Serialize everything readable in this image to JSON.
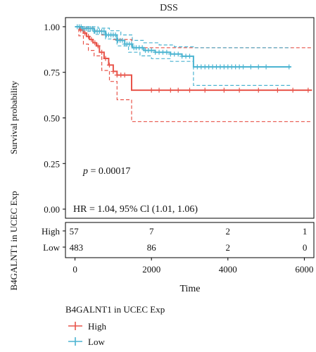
{
  "chart_data": {
    "type": "line",
    "title": "DSS",
    "xlabel": "Time",
    "ylabel": "Survival probability",
    "xlim": [
      -250,
      6250
    ],
    "ylim": [
      -0.05,
      1.05
    ],
    "x_ticks": [
      0,
      2000,
      4000,
      6000
    ],
    "x_tick_labels": [
      "0",
      "2000",
      "4000",
      "6000"
    ],
    "y_ticks": [
      0,
      0.25,
      0.5,
      0.75,
      1
    ],
    "y_tick_labels": [
      "0.00",
      "0.25",
      "0.50",
      "0.75",
      "1.00"
    ],
    "grid": false,
    "annotations": {
      "p_label": "p",
      "p_value": " = 0.00017",
      "hr": "HR = 1.04, 95% Cl (1.01, 1.06)"
    },
    "series": [
      {
        "name": "High",
        "color": "#e8544a",
        "curve": [
          [
            0,
            1.0
          ],
          [
            120,
            0.982
          ],
          [
            220,
            0.965
          ],
          [
            300,
            0.947
          ],
          [
            380,
            0.93
          ],
          [
            470,
            0.912
          ],
          [
            560,
            0.895
          ],
          [
            640,
            0.86
          ],
          [
            760,
            0.826
          ],
          [
            880,
            0.79
          ],
          [
            1000,
            0.755
          ],
          [
            1100,
            0.735
          ],
          [
            1480,
            0.735
          ],
          [
            1480,
            0.652
          ],
          [
            6200,
            0.652
          ]
        ],
        "upper": [
          [
            0,
            1.0
          ],
          [
            150,
            1.0
          ],
          [
            300,
            0.993
          ],
          [
            500,
            0.978
          ],
          [
            700,
            0.955
          ],
          [
            1000,
            0.93
          ],
          [
            1480,
            0.92
          ],
          [
            1480,
            0.885
          ],
          [
            6200,
            0.885
          ]
        ],
        "lower": [
          [
            0,
            1.0
          ],
          [
            100,
            0.95
          ],
          [
            220,
            0.905
          ],
          [
            350,
            0.87
          ],
          [
            500,
            0.84
          ],
          [
            700,
            0.76
          ],
          [
            900,
            0.7
          ],
          [
            1100,
            0.6
          ],
          [
            1480,
            0.6
          ],
          [
            1480,
            0.48
          ],
          [
            6200,
            0.48
          ]
        ],
        "censor_x": [
          150,
          260,
          350,
          430,
          520,
          600,
          700,
          800,
          900,
          1000,
          1100,
          1200,
          1300,
          2000,
          2200,
          2500,
          2700,
          3000,
          3400,
          3900,
          4300,
          4800,
          5300,
          5700,
          6100
        ]
      },
      {
        "name": "Low",
        "color": "#4bb4d1",
        "curve": [
          [
            0,
            1.0
          ],
          [
            200,
            0.99
          ],
          [
            500,
            0.975
          ],
          [
            800,
            0.955
          ],
          [
            1100,
            0.925
          ],
          [
            1300,
            0.905
          ],
          [
            1500,
            0.885
          ],
          [
            1800,
            0.87
          ],
          [
            2100,
            0.86
          ],
          [
            2500,
            0.85
          ],
          [
            2800,
            0.838
          ],
          [
            3100,
            0.832
          ],
          [
            3100,
            0.78
          ],
          [
            5650,
            0.78
          ]
        ],
        "upper": [
          [
            0,
            1.0
          ],
          [
            300,
            1.0
          ],
          [
            600,
            0.992
          ],
          [
            900,
            0.978
          ],
          [
            1200,
            0.955
          ],
          [
            1500,
            0.925
          ],
          [
            1800,
            0.912
          ],
          [
            2200,
            0.9
          ],
          [
            2600,
            0.89
          ],
          [
            3100,
            0.885
          ],
          [
            5650,
            0.885
          ]
        ],
        "lower": [
          [
            0,
            1.0
          ],
          [
            200,
            0.975
          ],
          [
            500,
            0.958
          ],
          [
            800,
            0.933
          ],
          [
            1100,
            0.895
          ],
          [
            1400,
            0.86
          ],
          [
            1700,
            0.84
          ],
          [
            2000,
            0.825
          ],
          [
            2500,
            0.81
          ],
          [
            3100,
            0.782
          ],
          [
            3100,
            0.678
          ],
          [
            5650,
            0.678
          ]
        ],
        "censor_x": [
          60,
          110,
          160,
          210,
          260,
          310,
          360,
          410,
          460,
          520,
          580,
          640,
          700,
          760,
          820,
          880,
          940,
          1000,
          1060,
          1120,
          1180,
          1240,
          1300,
          1360,
          1420,
          1480,
          1540,
          1600,
          1680,
          1760,
          1840,
          1920,
          2000,
          2100,
          2200,
          2300,
          2400,
          2500,
          2600,
          2700,
          2800,
          2900,
          3000,
          3200,
          3300,
          3400,
          3500,
          3600,
          3700,
          3800,
          3900,
          4000,
          4100,
          4200,
          4300,
          4400,
          4600,
          4800,
          5000,
          5600
        ]
      }
    ],
    "risk_table": {
      "title": "B4GALNT1 in UCEC Exp",
      "times": [
        0,
        2000,
        4000,
        6000
      ],
      "rows": [
        {
          "label": "High",
          "counts": [
            "57",
            "7",
            "2",
            "1"
          ]
        },
        {
          "label": "Low",
          "counts": [
            "483",
            "86",
            "2",
            "0"
          ]
        }
      ]
    },
    "legend": {
      "title": "B4GALNT1 in UCEC Exp",
      "placement": "bottom",
      "items": [
        "High",
        "Low"
      ]
    }
  }
}
